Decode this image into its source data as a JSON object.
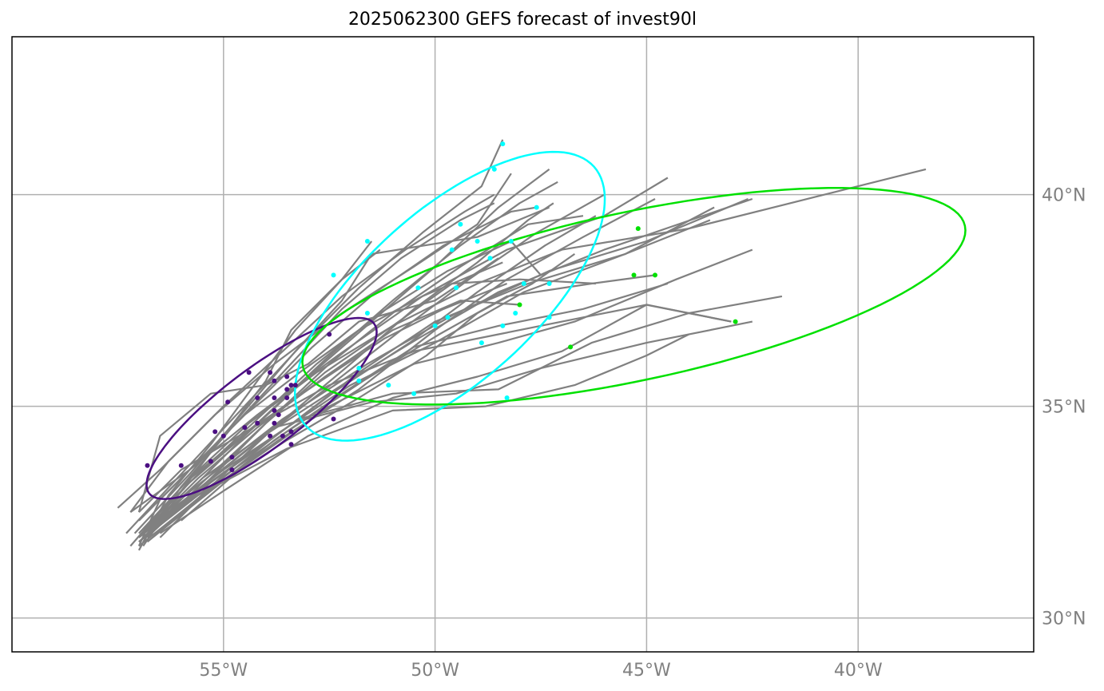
{
  "title": "2025062300 GEFS forecast of invest90l",
  "map": {
    "lon_range": [
      -60.0,
      -35.85
    ],
    "lat_range": [
      29.2,
      43.73
    ],
    "lon_ticks": [
      {
        "value": -55,
        "label": "55°W"
      },
      {
        "value": -50,
        "label": "50°W"
      },
      {
        "value": -45,
        "label": "45°W"
      },
      {
        "value": -40,
        "label": "40°W"
      }
    ],
    "lat_ticks": [
      {
        "value": 40,
        "label": "40°N"
      },
      {
        "value": 35,
        "label": "35°N"
      },
      {
        "value": 30,
        "label": "30°N"
      }
    ],
    "gridlines": true
  },
  "colors": {
    "track": "#808080",
    "grid": "#b0b0b0",
    "day1": "#4b0f82",
    "day2": "#00ffff",
    "day3": "#00e000"
  },
  "tracks": [
    [
      [
        -56.9,
        31.9
      ],
      [
        -55.8,
        33.0
      ],
      [
        -54.5,
        34.3
      ],
      [
        -53.0,
        35.7
      ],
      [
        -51.5,
        37.0
      ],
      [
        -50.0,
        38.3
      ],
      [
        -48.5,
        39.7
      ],
      [
        -47.3,
        40.6
      ]
    ],
    [
      [
        -57.0,
        31.8
      ],
      [
        -55.9,
        32.8
      ],
      [
        -54.3,
        34.1
      ],
      [
        -52.6,
        35.4
      ],
      [
        -50.8,
        36.8
      ],
      [
        -49.2,
        38.0
      ],
      [
        -47.6,
        39.1
      ],
      [
        -46.0,
        40.0
      ]
    ],
    [
      [
        -57.3,
        32.0
      ],
      [
        -56.0,
        33.4
      ],
      [
        -54.6,
        34.9
      ],
      [
        -53.2,
        36.4
      ],
      [
        -51.8,
        37.8
      ],
      [
        -50.3,
        39.1
      ],
      [
        -48.9,
        40.2
      ],
      [
        -48.4,
        41.3
      ]
    ],
    [
      [
        -57.2,
        31.7
      ],
      [
        -55.9,
        33.2
      ],
      [
        -54.2,
        34.6
      ],
      [
        -52.6,
        36.1
      ],
      [
        -51.0,
        37.5
      ],
      [
        -49.4,
        38.8
      ],
      [
        -48.0,
        39.8
      ],
      [
        -47.1,
        40.3
      ]
    ],
    [
      [
        -56.5,
        31.9
      ],
      [
        -55.2,
        33.2
      ],
      [
        -53.8,
        34.5
      ],
      [
        -52.0,
        36.0
      ],
      [
        -50.5,
        37.3
      ],
      [
        -49.0,
        38.4
      ],
      [
        -47.8,
        39.4
      ],
      [
        -47.2,
        39.8
      ]
    ],
    [
      [
        -57.0,
        31.7
      ],
      [
        -55.5,
        32.9
      ],
      [
        -53.7,
        34.2
      ],
      [
        -51.8,
        35.4
      ],
      [
        -50.0,
        36.8
      ],
      [
        -48.3,
        38.0
      ],
      [
        -46.5,
        39.0
      ],
      [
        -44.8,
        39.9
      ]
    ],
    [
      [
        -56.8,
        32.0
      ],
      [
        -55.3,
        33.2
      ],
      [
        -53.5,
        34.5
      ],
      [
        -51.8,
        35.8
      ],
      [
        -50.0,
        37.0
      ],
      [
        -47.8,
        37.9
      ],
      [
        -45.5,
        38.6
      ],
      [
        -43.5,
        39.4
      ]
    ],
    [
      [
        -57.2,
        32.5
      ],
      [
        -55.8,
        33.5
      ],
      [
        -54.2,
        34.8
      ],
      [
        -52.3,
        36.2
      ],
      [
        -50.3,
        37.6
      ],
      [
        -48.3,
        38.7
      ],
      [
        -46.0,
        39.5
      ],
      [
        -44.5,
        40.4
      ]
    ],
    [
      [
        -56.9,
        32.1
      ],
      [
        -55.4,
        33.3
      ],
      [
        -53.6,
        34.7
      ],
      [
        -51.6,
        36.0
      ],
      [
        -49.5,
        37.2
      ],
      [
        -47.3,
        38.2
      ],
      [
        -45.0,
        38.9
      ],
      [
        -42.6,
        39.9
      ]
    ],
    [
      [
        -57.0,
        31.9
      ],
      [
        -55.6,
        33.0
      ],
      [
        -53.8,
        34.3
      ],
      [
        -52.0,
        35.5
      ],
      [
        -50.0,
        36.5
      ],
      [
        -47.9,
        37.7
      ],
      [
        -45.5,
        38.6
      ],
      [
        -43.4,
        39.7
      ]
    ],
    [
      [
        -56.5,
        32.0
      ],
      [
        -55.0,
        33.0
      ],
      [
        -53.0,
        34.3
      ],
      [
        -51.0,
        35.2
      ],
      [
        -49.0,
        35.7
      ],
      [
        -47.0,
        36.3
      ],
      [
        -45.0,
        37.4
      ],
      [
        -43.0,
        37.0
      ]
    ],
    [
      [
        -56.7,
        32.2
      ],
      [
        -55.0,
        33.5
      ],
      [
        -53.2,
        34.7
      ],
      [
        -51.0,
        35.3
      ],
      [
        -48.5,
        35.4
      ],
      [
        -46.3,
        36.5
      ],
      [
        -44.0,
        37.2
      ],
      [
        -41.8,
        37.6
      ]
    ],
    [
      [
        -56.9,
        32.0
      ],
      [
        -55.5,
        33.3
      ],
      [
        -53.8,
        34.5
      ],
      [
        -51.5,
        35.1
      ],
      [
        -49.5,
        35.3
      ],
      [
        -47.5,
        35.9
      ],
      [
        -45.0,
        36.5
      ],
      [
        -42.5,
        37.0
      ]
    ],
    [
      [
        -57.0,
        31.8
      ],
      [
        -55.6,
        32.9
      ],
      [
        -53.5,
        34.0
      ],
      [
        -51.0,
        34.9
      ],
      [
        -48.8,
        35.0
      ],
      [
        -46.7,
        35.5
      ],
      [
        -45.0,
        36.2
      ],
      [
        -44.0,
        36.7
      ]
    ],
    [
      [
        -56.0,
        32.3
      ],
      [
        -54.5,
        33.6
      ],
      [
        -52.5,
        35.0
      ],
      [
        -50.5,
        36.0
      ],
      [
        -48.5,
        36.5
      ],
      [
        -46.7,
        37.0
      ],
      [
        -44.3,
        38.0
      ],
      [
        -42.5,
        38.7
      ]
    ],
    [
      [
        -57.5,
        32.6
      ],
      [
        -56.5,
        33.5
      ],
      [
        -55.2,
        34.8
      ],
      [
        -53.8,
        36.0
      ],
      [
        -52.2,
        37.2
      ],
      [
        -50.5,
        38.3
      ],
      [
        -49.0,
        39.3
      ],
      [
        -48.2,
        40.5
      ]
    ],
    [
      [
        -57.2,
        32.5
      ],
      [
        -56.3,
        33.7
      ],
      [
        -55.0,
        35.0
      ],
      [
        -53.6,
        36.3
      ],
      [
        -52.2,
        37.6
      ],
      [
        -50.7,
        38.7
      ],
      [
        -49.3,
        39.6
      ],
      [
        -48.6,
        40.0
      ]
    ],
    [
      [
        -57.0,
        32.3
      ],
      [
        -55.7,
        33.6
      ],
      [
        -54.3,
        35.0
      ],
      [
        -52.9,
        36.4
      ],
      [
        -51.4,
        37.7
      ],
      [
        -49.8,
        38.8
      ],
      [
        -48.2,
        39.6
      ],
      [
        -47.6,
        39.7
      ]
    ],
    [
      [
        -56.8,
        31.9
      ],
      [
        -55.5,
        33.2
      ],
      [
        -54.0,
        34.6
      ],
      [
        -52.5,
        36.0
      ],
      [
        -51.0,
        37.2
      ],
      [
        -49.4,
        38.3
      ],
      [
        -47.8,
        39.3
      ],
      [
        -46.5,
        39.5
      ]
    ],
    [
      [
        -57.1,
        32.0
      ],
      [
        -55.8,
        33.4
      ],
      [
        -54.5,
        34.9
      ],
      [
        -53.3,
        36.3
      ],
      [
        -52.2,
        37.5
      ],
      [
        -51.5,
        38.6
      ],
      [
        -49.0,
        39.0
      ],
      [
        -47.3,
        39.7
      ]
    ],
    [
      [
        -57.0,
        31.7
      ],
      [
        -56.5,
        32.8
      ],
      [
        -55.5,
        33.8
      ],
      [
        -54.5,
        34.8
      ],
      [
        -53.2,
        35.8
      ],
      [
        -51.8,
        36.8
      ],
      [
        -50.3,
        37.6
      ],
      [
        -48.4,
        38.4
      ]
    ],
    [
      [
        -56.6,
        32.1
      ],
      [
        -55.3,
        33.3
      ],
      [
        -54.0,
        34.6
      ],
      [
        -52.6,
        35.8
      ],
      [
        -51.0,
        36.9
      ],
      [
        -49.6,
        37.9
      ],
      [
        -48.0,
        38.0
      ],
      [
        -46.2,
        37.9
      ]
    ],
    [
      [
        -56.9,
        32.0
      ],
      [
        -55.6,
        33.3
      ],
      [
        -54.2,
        34.5
      ],
      [
        -52.6,
        35.7
      ],
      [
        -51.0,
        36.8
      ],
      [
        -49.4,
        37.5
      ],
      [
        -48.0,
        37.4
      ]
    ],
    [
      [
        -56.8,
        31.8
      ],
      [
        -55.3,
        33.0
      ],
      [
        -53.8,
        34.2
      ],
      [
        -52.2,
        35.3
      ],
      [
        -50.5,
        36.4
      ],
      [
        -48.5,
        36.9
      ],
      [
        -46.5,
        37.3
      ],
      [
        -44.5,
        37.9
      ]
    ],
    [
      [
        -57.0,
        31.9
      ],
      [
        -55.8,
        33.2
      ],
      [
        -54.3,
        34.5
      ],
      [
        -52.7,
        35.6
      ],
      [
        -51.2,
        36.6
      ],
      [
        -49.8,
        37.3
      ],
      [
        -48.3,
        37.9
      ]
    ],
    [
      [
        -56.7,
        32.1
      ],
      [
        -55.2,
        33.2
      ],
      [
        -53.5,
        34.4
      ],
      [
        -51.7,
        35.6
      ],
      [
        -49.9,
        36.7
      ],
      [
        -48.3,
        37.6
      ],
      [
        -46.3,
        37.9
      ],
      [
        -44.8,
        38.1
      ]
    ],
    [
      [
        -56.8,
        32.2
      ],
      [
        -55.6,
        33.4
      ],
      [
        -54.2,
        34.7
      ],
      [
        -52.8,
        36.0
      ],
      [
        -51.3,
        37.2
      ],
      [
        -49.7,
        38.2
      ],
      [
        -48.2,
        38.9
      ],
      [
        -47.5,
        38.1
      ]
    ],
    [
      [
        -57.0,
        31.6
      ],
      [
        -56.3,
        32.9
      ],
      [
        -55.3,
        34.1
      ],
      [
        -54.2,
        35.6
      ],
      [
        -53.3,
        36.8
      ],
      [
        -52.2,
        38.0
      ],
      [
        -51.5,
        38.9
      ]
    ],
    [
      [
        -56.9,
        31.7
      ],
      [
        -56.0,
        33.0
      ],
      [
        -55.0,
        34.3
      ],
      [
        -54.0,
        35.6
      ],
      [
        -53.4,
        36.8
      ],
      [
        -52.2,
        38.0
      ],
      [
        -51.3,
        38.7
      ]
    ],
    [
      [
        -56.9,
        31.8
      ],
      [
        -56.0,
        33.1
      ],
      [
        -54.8,
        34.5
      ],
      [
        -53.5,
        35.9
      ],
      [
        -52.2,
        37.3
      ],
      [
        -50.8,
        38.5
      ],
      [
        -49.4,
        39.4
      ],
      [
        -48.6,
        39.8
      ]
    ],
    [
      [
        -57.0,
        32.5
      ],
      [
        -56.5,
        34.3
      ],
      [
        -55.3,
        35.3
      ],
      [
        -54.0,
        35.5
      ],
      [
        -53.0,
        36.0
      ],
      [
        -51.8,
        37.0
      ],
      [
        -50.0,
        37.5
      ],
      [
        -48.5,
        38.5
      ]
    ],
    [
      [
        -57.0,
        32.5
      ],
      [
        -56.0,
        33.5
      ],
      [
        -54.3,
        34.5
      ],
      [
        -52.5,
        35.5
      ],
      [
        -50.5,
        36.3
      ],
      [
        -48.5,
        36.7
      ],
      [
        -47.0,
        37.0
      ],
      [
        -45.0,
        37.4
      ],
      [
        -43.0,
        37.0
      ]
    ],
    [
      [
        -56.6,
        32.0
      ],
      [
        -55.2,
        33.1
      ],
      [
        -53.5,
        34.2
      ],
      [
        -51.8,
        35.2
      ],
      [
        -50.2,
        36.2
      ],
      [
        -49.0,
        37.2
      ],
      [
        -47.7,
        37.9
      ],
      [
        -46.7,
        38.6
      ]
    ],
    [
      [
        -56.8,
        31.8
      ],
      [
        -55.4,
        33.0
      ],
      [
        -53.9,
        34.2
      ],
      [
        -52.3,
        35.4
      ],
      [
        -50.6,
        36.5
      ],
      [
        -49.0,
        37.7
      ],
      [
        -47.4,
        38.8
      ],
      [
        -46.2,
        39.5
      ]
    ],
    [
      [
        -56.9,
        32.0
      ],
      [
        -55.4,
        33.2
      ],
      [
        -53.9,
        34.4
      ],
      [
        -52.2,
        35.5
      ],
      [
        -50.4,
        36.6
      ],
      [
        -48.5,
        37.7
      ],
      [
        -46.0,
        38.7
      ],
      [
        -42.5,
        39.9
      ]
    ],
    [
      [
        -57.0,
        32.0
      ],
      [
        -55.8,
        33.3
      ],
      [
        -54.4,
        34.6
      ],
      [
        -52.8,
        35.8
      ],
      [
        -51.0,
        36.9
      ],
      [
        -49.0,
        37.9
      ],
      [
        -47.0,
        38.7
      ],
      [
        -44.0,
        39.2
      ],
      [
        -38.4,
        40.6
      ]
    ]
  ],
  "day1_points": [
    [
      -56.8,
      33.6
    ],
    [
      -56.0,
      33.6
    ],
    [
      -55.3,
      33.7
    ],
    [
      -54.8,
      33.5
    ],
    [
      -54.8,
      33.8
    ],
    [
      -55.2,
      34.4
    ],
    [
      -55.0,
      34.3
    ],
    [
      -54.5,
      34.5
    ],
    [
      -54.2,
      34.6
    ],
    [
      -53.9,
      34.3
    ],
    [
      -53.6,
      34.3
    ],
    [
      -53.4,
      34.1
    ],
    [
      -53.4,
      34.4
    ],
    [
      -53.8,
      34.6
    ],
    [
      -53.8,
      34.9
    ],
    [
      -53.7,
      34.8
    ],
    [
      -53.5,
      35.2
    ],
    [
      -53.8,
      35.2
    ],
    [
      -54.2,
      35.2
    ],
    [
      -54.9,
      35.1
    ],
    [
      -53.5,
      35.4
    ],
    [
      -53.4,
      35.5
    ],
    [
      -53.3,
      35.5
    ],
    [
      -53.8,
      35.6
    ],
    [
      -53.5,
      35.7
    ],
    [
      -53.9,
      35.8
    ],
    [
      -54.4,
      35.8
    ],
    [
      -52.5,
      36.7
    ],
    [
      -52.4,
      34.7
    ]
  ],
  "day2_points": [
    [
      -48.4,
      41.2
    ],
    [
      -48.6,
      40.6
    ],
    [
      -47.6,
      39.7
    ],
    [
      -49.4,
      39.3
    ],
    [
      -49.0,
      38.9
    ],
    [
      -48.2,
      38.9
    ],
    [
      -51.6,
      38.9
    ],
    [
      -49.6,
      38.7
    ],
    [
      -48.7,
      38.5
    ],
    [
      -52.4,
      38.1
    ],
    [
      -47.9,
      37.9
    ],
    [
      -47.3,
      37.9
    ],
    [
      -50.4,
      37.8
    ],
    [
      -49.5,
      37.8
    ],
    [
      -48.1,
      37.2
    ],
    [
      -51.6,
      37.2
    ],
    [
      -49.7,
      37.1
    ],
    [
      -47.3,
      37.1
    ],
    [
      -50.0,
      36.9
    ],
    [
      -48.4,
      36.9
    ],
    [
      -48.9,
      36.5
    ],
    [
      -51.8,
      35.9
    ],
    [
      -51.8,
      35.6
    ],
    [
      -51.1,
      35.5
    ],
    [
      -50.5,
      35.3
    ],
    [
      -48.3,
      35.2
    ]
  ],
  "day3_points": [
    [
      -45.2,
      39.2
    ],
    [
      -45.3,
      38.1
    ],
    [
      -44.8,
      38.1
    ],
    [
      -48.0,
      37.4
    ],
    [
      -46.8,
      36.4
    ],
    [
      -42.9,
      37.0
    ]
  ],
  "ellipses": [
    {
      "name": "day1",
      "center": [
        -54.1,
        34.95
      ],
      "semi_major": 3.33,
      "semi_minor": 0.94,
      "angle_deg": 37
    },
    {
      "name": "day2",
      "center": [
        -49.65,
        37.6
      ],
      "semi_major": 4.58,
      "semi_minor": 2.02,
      "angle_deg": 42
    },
    {
      "name": "day3",
      "center": [
        -45.3,
        37.6
      ],
      "semi_major": 8.0,
      "semi_minor": 1.99,
      "angle_deg": 12
    }
  ]
}
